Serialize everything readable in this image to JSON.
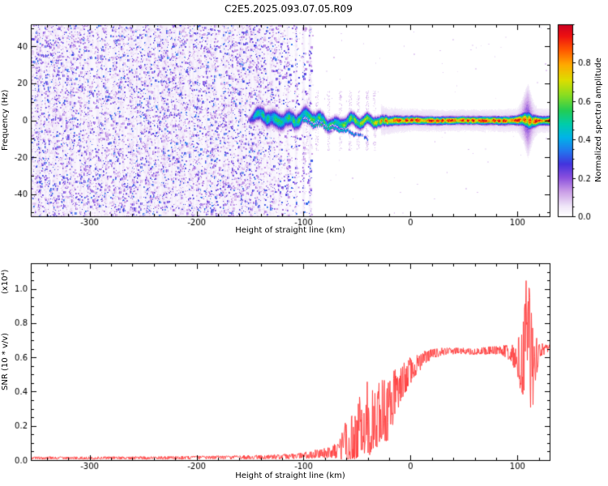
{
  "chart_data": [
    {
      "type": "heatmap",
      "title": "C2E5.2025.093.07.05.R09",
      "xlabel": "Height of straight line (km)",
      "ylabel": "Frequency (Hz)",
      "xlim": [
        -355,
        130
      ],
      "ylim": [
        -52,
        52
      ],
      "xticks": [
        -300,
        -200,
        -100,
        0,
        100
      ],
      "yticks": [
        -40,
        -20,
        0,
        20,
        40
      ],
      "x_minor_step": 20,
      "y_minor_step": 10,
      "colorbar": {
        "label": "Normalized spectral amplitude",
        "range": [
          0.0,
          1.0
        ],
        "ticks": [
          0.0,
          0.2,
          0.4,
          0.6,
          0.8
        ],
        "minor_step": 0.05
      },
      "colormap": [
        {
          "v": 0.0,
          "c": "#ffffff"
        },
        {
          "v": 0.05,
          "c": "#f0e6f8"
        },
        {
          "v": 0.13,
          "c": "#c89ae6"
        },
        {
          "v": 0.2,
          "c": "#8a50dd"
        },
        {
          "v": 0.27,
          "c": "#4433dd"
        },
        {
          "v": 0.34,
          "c": "#2277ee"
        },
        {
          "v": 0.41,
          "c": "#00b4e8"
        },
        {
          "v": 0.48,
          "c": "#00ccaa"
        },
        {
          "v": 0.55,
          "c": "#22cc55"
        },
        {
          "v": 0.63,
          "c": "#88dd22"
        },
        {
          "v": 0.71,
          "c": "#dddd00"
        },
        {
          "v": 0.79,
          "c": "#ffaa00"
        },
        {
          "v": 0.87,
          "c": "#ff5500"
        },
        {
          "v": 0.94,
          "c": "#ee1111"
        },
        {
          "v": 1.0,
          "c": "#cc0022"
        }
      ],
      "noise": {
        "full_until_km": -152,
        "fade_end_km": -93,
        "stripe_centers_km": [
          -158,
          -149,
          -140,
          -131,
          -123,
          -115,
          -107,
          -100,
          -94
        ],
        "smear_centers_km": [
          -97,
          -88,
          -77,
          -66,
          -57,
          -49,
          -41,
          -34
        ],
        "value_range": [
          0.04,
          0.34
        ],
        "sparse_dot_count": 70
      },
      "signal": {
        "keypoints_format": [
          "height_km",
          "center_hz",
          "halfwidth_hz",
          "core_amplitude"
        ],
        "keypoints": [
          [
            -152,
            1.5,
            1.2,
            0.25
          ],
          [
            -147,
            1.0,
            3.2,
            0.48
          ],
          [
            -138,
            2.5,
            3.8,
            0.55
          ],
          [
            -128,
            0.5,
            4.2,
            0.52
          ],
          [
            -118,
            2.0,
            4.0,
            0.55
          ],
          [
            -108,
            0.0,
            3.8,
            0.58
          ],
          [
            -98,
            1.5,
            3.6,
            0.55
          ],
          [
            -88,
            0.5,
            3.4,
            0.6
          ],
          [
            -78,
            -0.5,
            3.2,
            0.6
          ],
          [
            -68,
            -1.5,
            3.0,
            0.62
          ],
          [
            -58,
            -0.5,
            3.0,
            0.65
          ],
          [
            -48,
            -1.5,
            2.8,
            0.68
          ],
          [
            -40,
            -0.5,
            2.6,
            0.72
          ],
          [
            -32,
            0.5,
            2.5,
            0.78
          ],
          [
            -25,
            0.0,
            2.4,
            0.85
          ],
          [
            -18,
            0.3,
            2.2,
            0.9
          ],
          [
            -10,
            0.0,
            2.0,
            0.95
          ],
          [
            0,
            0.2,
            1.9,
            1.0
          ],
          [
            30,
            0.0,
            1.8,
            1.0
          ],
          [
            60,
            0.2,
            1.8,
            1.0
          ],
          [
            90,
            0.0,
            1.9,
            1.0
          ],
          [
            100,
            0.3,
            2.0,
            1.0
          ],
          [
            106,
            0.8,
            3.0,
            0.95
          ],
          [
            110,
            0.2,
            4.2,
            0.9
          ],
          [
            114,
            -0.3,
            3.0,
            0.95
          ],
          [
            120,
            0.0,
            2.0,
            1.0
          ],
          [
            130,
            0.0,
            2.0,
            1.0
          ]
        ],
        "tail_keypoints": [
          [
            -100,
            -0.5,
            1.1,
            0.45
          ],
          [
            -90,
            -2.0,
            1.1,
            0.5
          ],
          [
            -80,
            -3.2,
            1.0,
            0.52
          ],
          [
            -70,
            -4.5,
            1.0,
            0.5
          ],
          [
            -60,
            -5.8,
            0.9,
            0.46
          ],
          [
            -52,
            -7.0,
            0.9,
            0.42
          ],
          [
            -46,
            -8.2,
            0.8,
            0.38
          ],
          [
            -40,
            -9.5,
            0.8,
            0.33
          ]
        ],
        "wiggle": {
          "amp_hz": 2.6,
          "end_km": -12
        }
      },
      "description": "Broadband purple speckle noise for heights below about -150 km, fading vertical noise stripes from -150 to -95 km, and a coherent signal ridge near 0 Hz that wiggles between -150 and -20 km then locks to a tight high-amplitude line (red core, yellow/green/blue fringes) out to 130 km with a disturbance near 110 km."
    },
    {
      "type": "line",
      "xlabel": "Height of straight line (km)",
      "ylabel": "SNR (10 * v/v)",
      "y_scale_label": "(x10⁴)",
      "xlim": [
        -355,
        130
      ],
      "ylim": [
        0,
        1.15
      ],
      "xticks": [
        -300,
        -200,
        -100,
        0,
        100
      ],
      "yticks": [
        0.0,
        0.2,
        0.4,
        0.6,
        0.8,
        1.0
      ],
      "x_minor_step": 20,
      "y_minor_step": 0.05,
      "line_color": "#ff4040",
      "series": [
        {
          "name": "SNR",
          "keypoints_format": [
            "height_km",
            "snr_x1e4",
            "noise_amplitude"
          ],
          "keypoints": [
            [
              -355,
              0.012,
              0.008
            ],
            [
              -300,
              0.012,
              0.008
            ],
            [
              -250,
              0.013,
              0.009
            ],
            [
              -200,
              0.014,
              0.01
            ],
            [
              -160,
              0.016,
              0.011
            ],
            [
              -130,
              0.018,
              0.013
            ],
            [
              -110,
              0.022,
              0.016
            ],
            [
              -95,
              0.03,
              0.022
            ],
            [
              -85,
              0.038,
              0.028
            ],
            [
              -75,
              0.045,
              0.035
            ],
            [
              -68,
              0.06,
              0.05
            ],
            [
              -62,
              0.09,
              0.11
            ],
            [
              -57,
              0.13,
              0.18
            ],
            [
              -53,
              0.1,
              0.12
            ],
            [
              -49,
              0.2,
              0.2
            ],
            [
              -45,
              0.14,
              0.13
            ],
            [
              -41,
              0.26,
              0.22
            ],
            [
              -37,
              0.2,
              0.18
            ],
            [
              -33,
              0.3,
              0.23
            ],
            [
              -29,
              0.24,
              0.2
            ],
            [
              -25,
              0.33,
              0.22
            ],
            [
              -21,
              0.28,
              0.18
            ],
            [
              -17,
              0.36,
              0.16
            ],
            [
              -13,
              0.41,
              0.13
            ],
            [
              -9,
              0.45,
              0.11
            ],
            [
              -5,
              0.49,
              0.1
            ],
            [
              -1,
              0.52,
              0.085
            ],
            [
              4,
              0.55,
              0.065
            ],
            [
              9,
              0.575,
              0.05
            ],
            [
              14,
              0.6,
              0.04
            ],
            [
              20,
              0.62,
              0.03
            ],
            [
              30,
              0.635,
              0.022
            ],
            [
              45,
              0.64,
              0.02
            ],
            [
              60,
              0.635,
              0.02
            ],
            [
              75,
              0.64,
              0.024
            ],
            [
              85,
              0.648,
              0.03
            ],
            [
              92,
              0.625,
              0.045
            ],
            [
              98,
              0.6,
              0.08
            ],
            [
              103,
              0.56,
              0.18
            ],
            [
              107,
              0.72,
              0.34
            ],
            [
              110,
              0.8,
              0.33
            ],
            [
              113,
              0.5,
              0.33
            ],
            [
              116,
              0.6,
              0.16
            ],
            [
              120,
              0.64,
              0.05
            ],
            [
              126,
              0.648,
              0.03
            ],
            [
              130,
              0.65,
              0.028
            ]
          ]
        }
      ]
    }
  ]
}
